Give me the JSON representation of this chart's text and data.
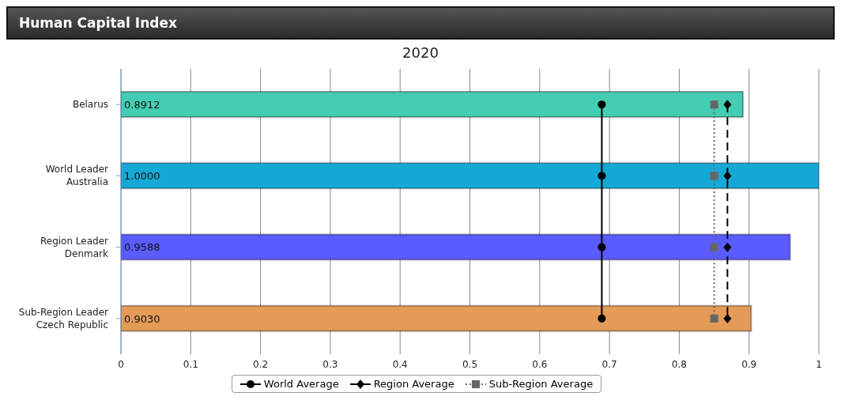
{
  "chart_data": {
    "type": "bar",
    "orientation": "horizontal",
    "title": "Human Capital Index",
    "subtitle": "2020",
    "categories": [
      "Belarus",
      "World Leader\nAustralia",
      "Region Leader\nDenmark",
      "Sub-Region Leader\nCzech Republic"
    ],
    "series": [
      {
        "values": [
          0.8912,
          1.0,
          0.9588,
          0.903
        ],
        "colors": [
          "#45cdb3",
          "#17a9d6",
          "#5a5cff",
          "#e49b57"
        ],
        "value_labels": [
          "0.8912",
          "1.0000",
          "0.9588",
          "0.9030"
        ]
      },
      {
        "type": "line",
        "name": "World Average",
        "color": "#000000",
        "values": [
          0.689,
          0.689,
          0.689,
          0.689
        ],
        "marker": "circle",
        "line_style": "solid"
      },
      {
        "type": "line",
        "name": "Region Average",
        "color": "#000000",
        "values": [
          0.869,
          0.869,
          0.869,
          0.869
        ],
        "marker": "diamond",
        "line_style": "dashed"
      },
      {
        "type": "line",
        "name": "Sub-Region Average",
        "color": "#666666",
        "values": [
          0.85,
          0.85,
          0.85,
          0.85
        ],
        "marker": "square",
        "line_style": "dotted"
      }
    ],
    "xlim": [
      0,
      1
    ],
    "xticks": [
      0,
      0.1,
      0.2,
      0.3,
      0.4,
      0.5,
      0.6,
      0.7,
      0.8,
      0.9,
      1
    ],
    "grid": "x",
    "legend": "bottom"
  }
}
